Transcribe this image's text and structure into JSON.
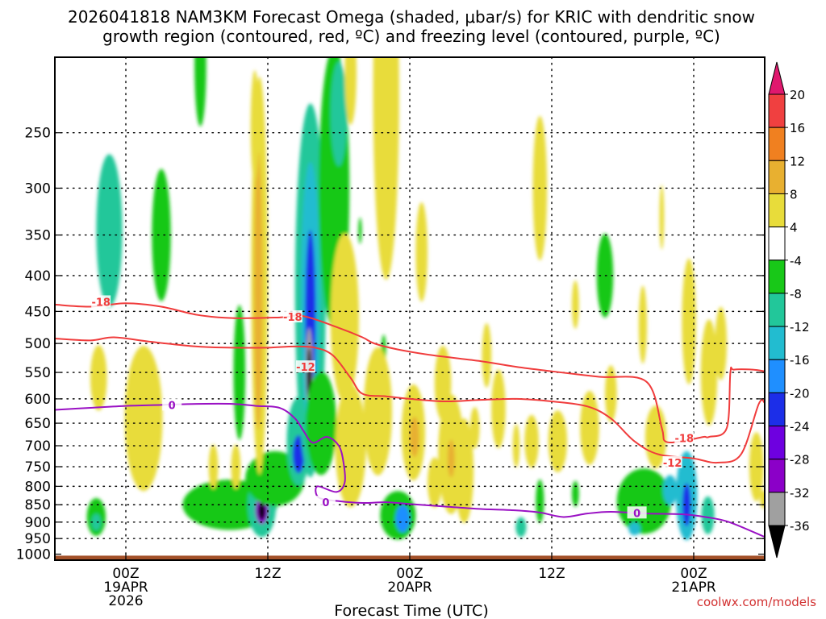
{
  "chart_data": {
    "type": "heatmap",
    "title": "2026041818 NAM3KM Forecast Omega (shaded, μbar/s) for KRIC with dendritic snow growth region (contoured, red, ºC) and freezing level (contoured, purple, ºC)",
    "title_lines": [
      "2026041818 NAM3KM Forecast Omega (shaded, μbar/s) for KRIC with dendritic snow",
      "growth region (contoured, red, ºC) and freezing level (contoured, purple, ºC)"
    ],
    "xlabel": "Forecast Time (UTC)",
    "ylabel": "",
    "credit": "coolwx.com/models",
    "x_range_hours": [
      -6,
      54
    ],
    "y_range_hpa": [
      1020,
      195
    ],
    "x_ticks": [
      {
        "hour": 0,
        "lines": [
          "00Z",
          "19APR",
          "2026"
        ]
      },
      {
        "hour": 12,
        "lines": [
          "12Z"
        ]
      },
      {
        "hour": 24,
        "lines": [
          "00Z",
          "20APR"
        ]
      },
      {
        "hour": 36,
        "lines": [
          "12Z"
        ]
      },
      {
        "hour": 48,
        "lines": [
          "00Z",
          "21APR"
        ]
      }
    ],
    "y_ticks": [
      {
        "p": 250,
        "label": "250"
      },
      {
        "p": 300,
        "label": "300"
      },
      {
        "p": 350,
        "label": "350"
      },
      {
        "p": 400,
        "label": "400"
      },
      {
        "p": 450,
        "label": "450"
      },
      {
        "p": 500,
        "label": "500"
      },
      {
        "p": 550,
        "label": "550"
      },
      {
        "p": 600,
        "label": "600"
      },
      {
        "p": 650,
        "label": "650"
      },
      {
        "p": 700,
        "label": "700"
      },
      {
        "p": 750,
        "label": "750"
      },
      {
        "p": 800,
        "label": "800"
      },
      {
        "p": 850,
        "label": "850"
      },
      {
        "p": 900,
        "label": "900"
      },
      {
        "p": 950,
        "label": "950"
      },
      {
        "p": 1000,
        "label": "1000"
      }
    ],
    "colorbar": {
      "levels": [
        -36,
        -32,
        -28,
        -24,
        -20,
        -16,
        -12,
        -8,
        -4,
        4,
        8,
        12,
        16,
        20
      ],
      "labels": [
        "20",
        "16",
        "12",
        "8",
        "4",
        "-4",
        "-8",
        "-12",
        "-16",
        "-20",
        "-24",
        "-28",
        "-32",
        "-36"
      ],
      "colors": [
        "#000000",
        "#a0a0a0",
        "#8b00c8",
        "#6e00e0",
        "#1c2ee8",
        "#1f8fff",
        "#22bcd0",
        "#22c79a",
        "#18c818",
        "#ffffff",
        "#e8dc3a",
        "#e8b030",
        "#f08020",
        "#f04040",
        "#e0186e"
      ]
    },
    "omega_fields": [
      {
        "t": -1.4,
        "p": 345,
        "dt": 1.1,
        "dp": 85,
        "v": -9
      },
      {
        "t": -1.4,
        "p": 350,
        "dt": 0.6,
        "dp": 45,
        "v": -12
      },
      {
        "t": 3,
        "p": 350,
        "dt": 0.8,
        "dp": 75,
        "v": -8
      },
      {
        "t": 6.3,
        "p": 200,
        "dt": 0.5,
        "dp": 40,
        "v": -5
      },
      {
        "t": -2.5,
        "p": 885,
        "dt": 0.8,
        "dp": 55,
        "v": -7
      },
      {
        "t": -2.5,
        "p": 900,
        "dt": 0.4,
        "dp": 25,
        "v": -10
      },
      {
        "t": 8.8,
        "p": 850,
        "dt": 4,
        "dp": 70,
        "v": -7
      },
      {
        "t": 9.6,
        "p": 550,
        "dt": 0.5,
        "dp": 120,
        "v": -7
      },
      {
        "t": 11.5,
        "p": 850,
        "dt": 1.2,
        "dp": 90,
        "v": -12
      },
      {
        "t": 11.5,
        "p": 865,
        "dt": 0.55,
        "dp": 40,
        "v": -30
      },
      {
        "t": 11.5,
        "p": 868,
        "dt": 0.3,
        "dp": 25,
        "v": -40
      },
      {
        "t": 12.6,
        "p": 780,
        "dt": 2.5,
        "dp": 70,
        "v": -8
      },
      {
        "t": 14.6,
        "p": 690,
        "dt": 1.0,
        "dp": 100,
        "v": -12
      },
      {
        "t": 14.6,
        "p": 720,
        "dt": 0.5,
        "dp": 45,
        "v": -22
      },
      {
        "t": 15.6,
        "p": 420,
        "dt": 1.3,
        "dp": 230,
        "v": -9
      },
      {
        "t": 15.6,
        "p": 430,
        "dt": 0.8,
        "dp": 180,
        "v": -14
      },
      {
        "t": 15.6,
        "p": 460,
        "dt": 0.45,
        "dp": 130,
        "v": -24
      },
      {
        "t": 15.5,
        "p": 545,
        "dt": 0.3,
        "dp": 75,
        "v": -34
      },
      {
        "t": 15.5,
        "p": 555,
        "dt": 0.2,
        "dp": 50,
        "v": -40
      },
      {
        "t": 17.6,
        "p": 300,
        "dt": 1.3,
        "dp": 130,
        "v": -7
      },
      {
        "t": 18.0,
        "p": 235,
        "dt": 0.7,
        "dp": 40,
        "v": -10
      },
      {
        "t": 16.5,
        "p": 650,
        "dt": 1.3,
        "dp": 110,
        "v": -8
      },
      {
        "t": 23.0,
        "p": 880,
        "dt": 1.5,
        "dp": 70,
        "v": -8
      },
      {
        "t": 23.4,
        "p": 890,
        "dt": 0.6,
        "dp": 40,
        "v": -18
      },
      {
        "t": 21.8,
        "p": 510,
        "dt": 0.2,
        "dp": 25,
        "v": -6
      },
      {
        "t": 19.8,
        "p": 345,
        "dt": 0.15,
        "dp": 15,
        "v": -6
      },
      {
        "t": 40.5,
        "p": 400,
        "dt": 0.7,
        "dp": 55,
        "v": -6
      },
      {
        "t": 33.4,
        "p": 915,
        "dt": 0.45,
        "dp": 30,
        "v": -10
      },
      {
        "t": 35.0,
        "p": 840,
        "dt": 0.35,
        "dp": 60,
        "v": -7
      },
      {
        "t": 43.8,
        "p": 840,
        "dt": 2.3,
        "dp": 90,
        "v": -8
      },
      {
        "t": 47.4,
        "p": 825,
        "dt": 0.9,
        "dp": 120,
        "v": -13
      },
      {
        "t": 47.4,
        "p": 850,
        "dt": 0.35,
        "dp": 60,
        "v": -22
      },
      {
        "t": 43.0,
        "p": 920,
        "dt": 0.5,
        "dp": 20,
        "v": -14
      },
      {
        "t": 46.0,
        "p": 810,
        "dt": 0.6,
        "dp": 40,
        "v": -14
      },
      {
        "t": 49.2,
        "p": 880,
        "dt": 0.55,
        "dp": 55,
        "v": -10
      },
      {
        "t": 38.0,
        "p": 820,
        "dt": 0.3,
        "dp": 35,
        "v": -6
      },
      {
        "t": 43.7,
        "p": 470,
        "dt": 0.35,
        "dp": 60,
        "v": 5
      },
      {
        "t": 47.6,
        "p": 465,
        "dt": 0.6,
        "dp": 95,
        "v": 6
      },
      {
        "t": 49.3,
        "p": 550,
        "dt": 0.7,
        "dp": 95,
        "v": 6
      },
      {
        "t": 50.3,
        "p": 500,
        "dt": 0.5,
        "dp": 60,
        "v": 5
      },
      {
        "t": 44.8,
        "p": 680,
        "dt": 0.9,
        "dp": 70,
        "v": 5
      },
      {
        "t": 11.3,
        "p": 400,
        "dt": 0.7,
        "dp": 230,
        "v": 6
      },
      {
        "t": 11.2,
        "p": 420,
        "dt": 0.35,
        "dp": 180,
        "v": 10
      },
      {
        "t": 10.9,
        "p": 245,
        "dt": 0.35,
        "dp": 45,
        "v": 5
      },
      {
        "t": 7.4,
        "p": 750,
        "dt": 0.4,
        "dp": 55,
        "v": 7
      },
      {
        "t": 9.3,
        "p": 750,
        "dt": 0.4,
        "dp": 55,
        "v": 5
      },
      {
        "t": 1.5,
        "p": 640,
        "dt": 1.6,
        "dp": 150,
        "v": 5
      },
      {
        "t": -2.3,
        "p": 560,
        "dt": 0.7,
        "dp": 60,
        "v": 5
      },
      {
        "t": 22.0,
        "p": 220,
        "dt": 1.1,
        "dp": 120,
        "v": 5
      },
      {
        "t": 19.0,
        "p": 205,
        "dt": 0.5,
        "dp": 35,
        "v": 5
      },
      {
        "t": 18.5,
        "p": 460,
        "dt": 1.2,
        "dp": 125,
        "v": 5
      },
      {
        "t": 19.0,
        "p": 700,
        "dt": 1.3,
        "dp": 140,
        "v": 5
      },
      {
        "t": 24.3,
        "p": 670,
        "dt": 1.0,
        "dp": 105,
        "v": 6
      },
      {
        "t": 24.4,
        "p": 680,
        "dt": 0.4,
        "dp": 45,
        "v": 10
      },
      {
        "t": 21.3,
        "p": 625,
        "dt": 1.2,
        "dp": 130,
        "v": 5
      },
      {
        "t": 26.1,
        "p": 790,
        "dt": 0.6,
        "dp": 65,
        "v": 5
      },
      {
        "t": 27.5,
        "p": 720,
        "dt": 1.1,
        "dp": 140,
        "v": 5
      },
      {
        "t": 27.5,
        "p": 730,
        "dt": 0.3,
        "dp": 45,
        "v": 8
      },
      {
        "t": 28.6,
        "p": 760,
        "dt": 0.8,
        "dp": 130,
        "v": 5
      },
      {
        "t": 26.8,
        "p": 570,
        "dt": 0.7,
        "dp": 70,
        "v": 5
      },
      {
        "t": 31.5,
        "p": 620,
        "dt": 0.6,
        "dp": 80,
        "v": 5
      },
      {
        "t": 30.5,
        "p": 520,
        "dt": 0.4,
        "dp": 55,
        "v": 5
      },
      {
        "t": 25.0,
        "p": 370,
        "dt": 0.5,
        "dp": 60,
        "v": 5
      },
      {
        "t": 34.3,
        "p": 690,
        "dt": 0.6,
        "dp": 60,
        "v": 5
      },
      {
        "t": 36.5,
        "p": 690,
        "dt": 0.8,
        "dp": 70,
        "v": 5
      },
      {
        "t": 39.2,
        "p": 660,
        "dt": 0.8,
        "dp": 80,
        "v": 5
      },
      {
        "t": 38.0,
        "p": 440,
        "dt": 0.3,
        "dp": 35,
        "v": 5
      },
      {
        "t": 41.0,
        "p": 590,
        "dt": 0.5,
        "dp": 55,
        "v": 5
      },
      {
        "t": 35.0,
        "p": 300,
        "dt": 0.6,
        "dp": 70,
        "v": 5
      },
      {
        "t": 45.3,
        "p": 330,
        "dt": 0.2,
        "dp": 35,
        "v": 5
      },
      {
        "t": 53.3,
        "p": 750,
        "dt": 0.6,
        "dp": 85,
        "v": 5
      },
      {
        "t": 53.9,
        "p": 835,
        "dt": 0.3,
        "dp": 25,
        "v": 5
      },
      {
        "t": 29.5,
        "p": 660,
        "dt": 0.4,
        "dp": 45,
        "v": 5
      },
      {
        "t": 33.0,
        "p": 700,
        "dt": 0.3,
        "dp": 50,
        "v": 5
      }
    ],
    "contours": [
      {
        "label": "-18",
        "color": "#f03c3c",
        "width": 2.0,
        "points": [
          [
            -6,
            440
          ],
          [
            -3,
            443
          ],
          [
            0,
            438
          ],
          [
            3,
            443
          ],
          [
            6,
            455
          ],
          [
            9,
            460
          ],
          [
            13,
            459
          ],
          [
            15,
            457
          ],
          [
            18,
            475
          ],
          [
            20,
            490
          ],
          [
            21,
            500
          ],
          [
            23,
            510
          ],
          [
            26,
            520
          ],
          [
            30,
            530
          ],
          [
            33,
            540
          ],
          [
            36,
            548
          ],
          [
            40,
            558
          ],
          [
            44,
            567
          ],
          [
            45.3,
            660
          ],
          [
            45.6,
            690
          ],
          [
            47,
            690
          ],
          [
            48.8,
            680
          ],
          [
            49.3,
            680
          ],
          [
            50.8,
            660
          ],
          [
            51.1,
            550
          ],
          [
            51.4,
            545
          ],
          [
            53,
            545
          ],
          [
            54,
            548
          ]
        ],
        "label_points": [
          [
            -2.1,
            436
          ],
          [
            14.1,
            458
          ],
          [
            47.2,
            683
          ]
        ]
      },
      {
        "label": "-12",
        "color": "#f03c3c",
        "width": 2.0,
        "points": [
          [
            -6,
            492
          ],
          [
            -3,
            495
          ],
          [
            -1,
            490
          ],
          [
            2,
            497
          ],
          [
            6,
            505
          ],
          [
            9,
            507
          ],
          [
            12,
            507
          ],
          [
            14.2,
            505
          ],
          [
            16,
            507
          ],
          [
            17.5,
            520
          ],
          [
            19,
            560
          ],
          [
            20,
            590
          ],
          [
            22,
            595
          ],
          [
            24,
            600
          ],
          [
            27,
            605
          ],
          [
            30,
            602
          ],
          [
            33,
            600
          ],
          [
            36,
            605
          ],
          [
            39,
            615
          ],
          [
            41,
            640
          ],
          [
            43,
            690
          ],
          [
            45,
            720
          ],
          [
            48,
            730
          ],
          [
            50,
            740
          ],
          [
            52,
            720
          ],
          [
            53.5,
            610
          ],
          [
            54,
            608
          ]
        ],
        "label_points": [
          [
            15.2,
            540
          ],
          [
            46.2,
            740
          ]
        ]
      },
      {
        "label": "0",
        "color": "#9a11c4",
        "width": 2.0,
        "points": [
          [
            -6,
            622
          ],
          [
            -3,
            618
          ],
          [
            0,
            614
          ],
          [
            3,
            612
          ],
          [
            6,
            610
          ],
          [
            9,
            610
          ],
          [
            11,
            614
          ],
          [
            13,
            618
          ],
          [
            14.3,
            640
          ],
          [
            15,
            666
          ],
          [
            15.8,
            693
          ],
          [
            17,
            680
          ],
          [
            18,
            700
          ],
          [
            18.4,
            740
          ],
          [
            18.5,
            790
          ],
          [
            17.8,
            815
          ],
          [
            16.2,
            800
          ],
          [
            16.3,
            830
          ],
          [
            18,
            840
          ],
          [
            20,
            845
          ],
          [
            22,
            843
          ],
          [
            24,
            848
          ],
          [
            27,
            855
          ],
          [
            30,
            862
          ],
          [
            33,
            866
          ],
          [
            35,
            872
          ],
          [
            37,
            885
          ],
          [
            39,
            875
          ],
          [
            41,
            870
          ],
          [
            44,
            875
          ],
          [
            47,
            877
          ],
          [
            49,
            885
          ],
          [
            51,
            900
          ],
          [
            54,
            945
          ]
        ],
        "label_points": [
          [
            3.9,
            612
          ],
          [
            16.9,
            843
          ],
          [
            43.2,
            873
          ]
        ]
      }
    ]
  }
}
